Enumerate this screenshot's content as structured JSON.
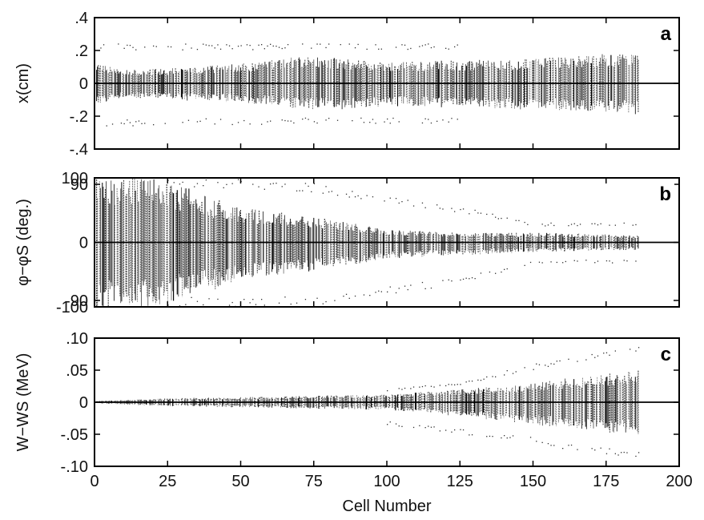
{
  "chart_data": [
    {
      "type": "scatter",
      "panel_label": "a",
      "xlabel": "",
      "ylabel": "x(cm)",
      "xlim": [
        0,
        200
      ],
      "ylim": [
        -0.4,
        0.4
      ],
      "xticks": [
        0,
        25,
        50,
        75,
        100,
        125,
        150,
        175,
        200
      ],
      "yticks": [
        -0.4,
        -0.2,
        0,
        0.2,
        0.4
      ],
      "ytick_labels": [
        "-.4",
        "-.2",
        "0",
        ".2",
        ".4"
      ],
      "grid": false,
      "series": [
        {
          "role": "envelope",
          "x": [
            1,
            10,
            25,
            50,
            60,
            70,
            85,
            100,
            125,
            150,
            165,
            186
          ],
          "ymax": [
            0.12,
            0.08,
            0.09,
            0.12,
            0.14,
            0.17,
            0.15,
            0.13,
            0.14,
            0.15,
            0.17,
            0.19
          ],
          "ymin": [
            -0.13,
            -0.09,
            -0.1,
            -0.12,
            -0.13,
            -0.16,
            -0.16,
            -0.14,
            -0.15,
            -0.16,
            -0.17,
            -0.19
          ]
        },
        {
          "role": "outliers",
          "x": [
            2,
            125
          ],
          "ymax": [
            0.24,
            0.24
          ],
          "ymin": [
            -0.26,
            -0.24
          ]
        }
      ]
    },
    {
      "type": "scatter",
      "panel_label": "b",
      "xlabel": "",
      "ylabel": "φ−φS (deg.)",
      "xlim": [
        0,
        200
      ],
      "ylim": [
        -100,
        100
      ],
      "xticks": [
        0,
        25,
        50,
        75,
        100,
        125,
        150,
        175,
        200
      ],
      "yticks": [
        -100,
        -90,
        0,
        90,
        100
      ],
      "ytick_labels": [
        "-100",
        "-90",
        "0",
        "90",
        "100"
      ],
      "grid": false,
      "series": [
        {
          "role": "envelope",
          "x": [
            1,
            20,
            25,
            40,
            50,
            75,
            100,
            125,
            150,
            186
          ],
          "ymax": [
            100,
            100,
            95,
            70,
            55,
            40,
            20,
            15,
            15,
            12
          ],
          "ymin": [
            -100,
            -100,
            -95,
            -75,
            -60,
            -45,
            -25,
            -20,
            -15,
            -12
          ]
        },
        {
          "role": "outliers",
          "x": [
            25,
            50,
            75,
            100,
            125,
            150,
            186
          ],
          "ymax": [
            100,
            98,
            92,
            70,
            55,
            30,
            30
          ],
          "ymin": [
            -100,
            -100,
            -98,
            -80,
            -65,
            -32,
            -32
          ]
        }
      ]
    },
    {
      "type": "scatter",
      "panel_label": "c",
      "xlabel": "Cell Number",
      "ylabel": "W−WS (MeV)",
      "xlim": [
        0,
        200
      ],
      "ylim": [
        -0.1,
        0.1
      ],
      "xticks": [
        0,
        25,
        50,
        75,
        100,
        125,
        150,
        175,
        200
      ],
      "xtick_labels": [
        "0",
        "25",
        "50",
        "75",
        "100",
        "125",
        "150",
        "175",
        "200"
      ],
      "yticks": [
        -0.1,
        -0.05,
        0,
        0.05,
        0.1
      ],
      "ytick_labels": [
        "-.10",
        "-.05",
        "0",
        ".05",
        ".10"
      ],
      "grid": false,
      "series": [
        {
          "role": "envelope",
          "x": [
            1,
            25,
            50,
            75,
            100,
            125,
            150,
            165,
            186
          ],
          "ymax": [
            0.002,
            0.006,
            0.008,
            0.01,
            0.012,
            0.02,
            0.03,
            0.04,
            0.05
          ],
          "ymin": [
            -0.002,
            -0.006,
            -0.008,
            -0.01,
            -0.012,
            -0.022,
            -0.035,
            -0.045,
            -0.05
          ]
        },
        {
          "role": "outliers",
          "x": [
            100,
            125,
            150,
            186
          ],
          "ymax": [
            0.02,
            0.032,
            0.06,
            0.088
          ],
          "ymin": [
            -0.035,
            -0.05,
            -0.065,
            -0.09
          ]
        }
      ]
    }
  ]
}
